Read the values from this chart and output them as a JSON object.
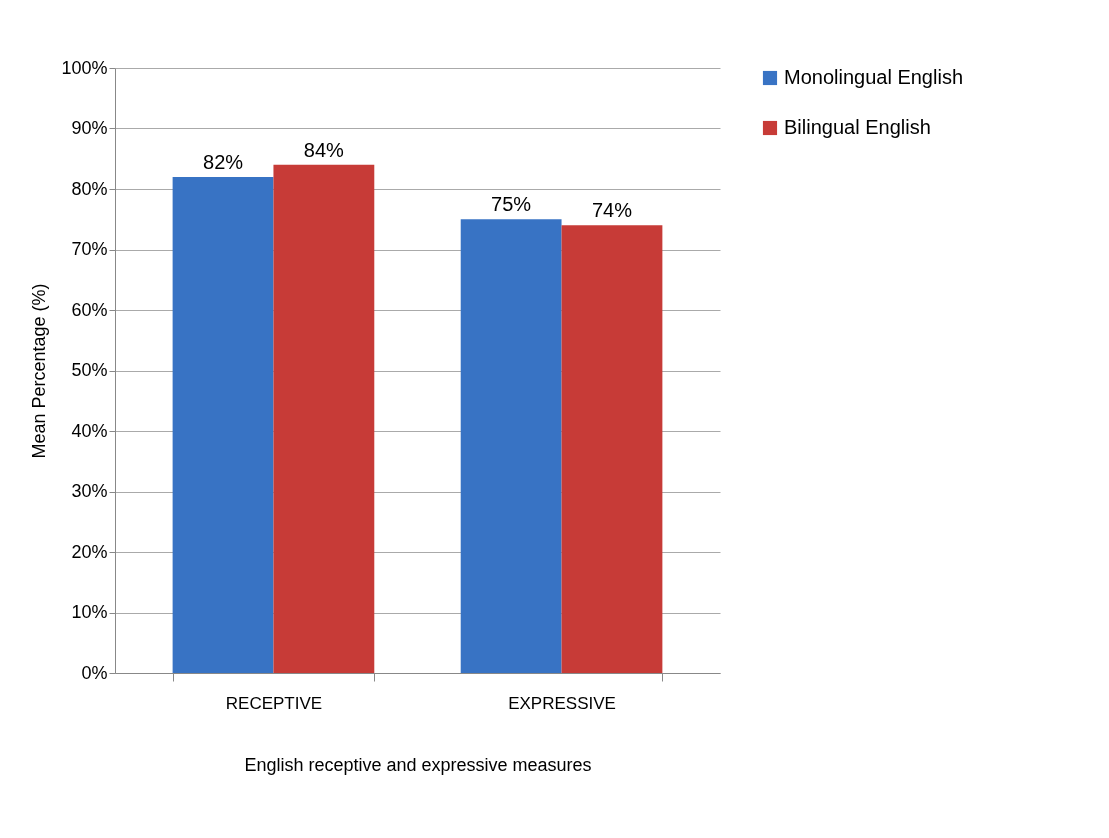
{
  "chart_data": {
    "type": "bar",
    "xlabel": "English receptive and expressive measures",
    "ylabel": "Mean Percentage (%)",
    "categories": [
      "RECEPTIVE",
      "EXPRESSIVE"
    ],
    "series": [
      {
        "name": "Monolingual English",
        "color": "#3873c4",
        "values": [
          82,
          75
        ],
        "value_labels": [
          "82%",
          "75%"
        ]
      },
      {
        "name": "Bilingual English",
        "color": "#c73b37",
        "values": [
          84,
          74
        ],
        "value_labels": [
          "84%",
          "74%"
        ]
      }
    ],
    "ylim": [
      0,
      100
    ],
    "yticks": [
      {
        "value": 0,
        "label": "0%"
      },
      {
        "value": 10,
        "label": "10%"
      },
      {
        "value": 20,
        "label": "20%"
      },
      {
        "value": 30,
        "label": "30%"
      },
      {
        "value": 40,
        "label": "40%"
      },
      {
        "value": 50,
        "label": "50%"
      },
      {
        "value": 60,
        "label": "60%"
      },
      {
        "value": 70,
        "label": "70%"
      },
      {
        "value": 80,
        "label": "80%"
      },
      {
        "value": 90,
        "label": "90%"
      },
      {
        "value": 100,
        "label": "100%"
      }
    ],
    "grid": "y",
    "legend": "right"
  }
}
